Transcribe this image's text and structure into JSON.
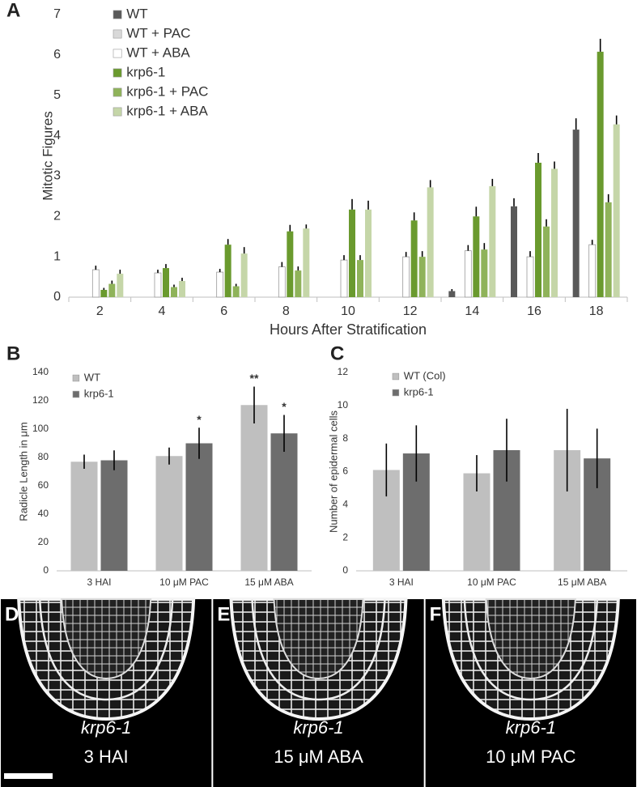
{
  "chart_data": [
    {
      "type": "bar",
      "panel_label": "A",
      "y_label": "Mitotic Figures",
      "x_label": "Hours After Stratification",
      "categories": [
        "2",
        "4",
        "6",
        "8",
        "10",
        "12",
        "14",
        "16",
        "18"
      ],
      "ylim": [
        0,
        7
      ],
      "yticks": [
        0,
        1,
        2,
        3,
        4,
        5,
        6,
        7
      ],
      "error_style": "upper",
      "series": [
        {
          "name": "WT",
          "color": "#595959",
          "values": [
            null,
            null,
            null,
            null,
            null,
            null,
            0.15,
            2.25,
            4.15
          ],
          "errors": [
            null,
            null,
            null,
            null,
            null,
            null,
            0.05,
            0.2,
            0.28
          ]
        },
        {
          "name": "WT + PAC",
          "color": "#d9d9d9",
          "values": [
            null,
            null,
            null,
            null,
            null,
            null,
            null,
            null,
            null
          ],
          "errors": [
            null,
            null,
            null,
            null,
            null,
            null,
            null,
            null,
            null
          ]
        },
        {
          "name": "WT + ABA",
          "color": "#ffffff",
          "values": [
            0.68,
            0.6,
            0.62,
            0.75,
            0.92,
            1.0,
            1.15,
            1.0,
            1.3
          ],
          "errors": [
            0.1,
            0.08,
            0.08,
            0.12,
            0.12,
            0.12,
            0.14,
            0.14,
            0.12
          ]
        },
        {
          "name": "krp6-1",
          "color": "#6a9a2e",
          "values": [
            0.18,
            0.72,
            1.3,
            1.63,
            2.17,
            1.9,
            2.0,
            3.33,
            6.08
          ],
          "errors": [
            0.05,
            0.1,
            0.14,
            0.16,
            0.26,
            0.2,
            0.24,
            0.24,
            0.32
          ]
        },
        {
          "name": "krp6-1 + PAC",
          "color": "#8fb35a",
          "values": [
            0.33,
            0.25,
            0.27,
            0.66,
            0.92,
            1.0,
            1.18,
            1.75,
            2.35
          ],
          "errors": [
            0.08,
            0.06,
            0.06,
            0.1,
            0.12,
            0.14,
            0.16,
            0.18,
            0.2
          ]
        },
        {
          "name": "krp6-1 + ABA",
          "color": "#c5d6a8",
          "values": [
            0.58,
            0.4,
            1.08,
            1.7,
            2.17,
            2.72,
            2.75,
            3.18,
            4.28
          ],
          "errors": [
            0.1,
            0.08,
            0.16,
            0.1,
            0.22,
            0.18,
            0.18,
            0.18,
            0.22
          ]
        }
      ]
    },
    {
      "type": "bar",
      "panel_label": "B",
      "y_label": "Radicle Length in μm",
      "categories": [
        "3 HAI",
        "10 μM PAC",
        "15 μM ABA"
      ],
      "ylim": [
        0,
        140
      ],
      "yticks": [
        0,
        20,
        40,
        60,
        80,
        100,
        120,
        140
      ],
      "error_style": "both",
      "series": [
        {
          "name": "WT",
          "color": "#bfbfbf",
          "values": [
            77,
            81,
            117
          ],
          "errors": [
            5,
            6,
            13
          ],
          "significance": [
            null,
            null,
            "**"
          ]
        },
        {
          "name": "krp6-1",
          "color": "#6d6d6d",
          "values": [
            78,
            90,
            97
          ],
          "errors": [
            7,
            11,
            13
          ],
          "significance": [
            null,
            "*",
            "*"
          ]
        }
      ]
    },
    {
      "type": "bar",
      "panel_label": "C",
      "y_label": "Number of epidermal cells",
      "categories": [
        "3 HAI",
        "10 μM PAC",
        "15 μM ABA"
      ],
      "ylim": [
        0,
        12
      ],
      "yticks": [
        0,
        2,
        4,
        6,
        8,
        10,
        12
      ],
      "error_style": "both",
      "series": [
        {
          "name": "WT (Col)",
          "color": "#bfbfbf",
          "values": [
            6.1,
            5.9,
            7.3
          ],
          "errors": [
            1.6,
            1.1,
            2.5
          ]
        },
        {
          "name": "krp6-1",
          "color": "#6d6d6d",
          "values": [
            7.1,
            7.3,
            6.8
          ],
          "errors": [
            1.7,
            1.9,
            1.8
          ]
        }
      ]
    }
  ],
  "images": [
    {
      "panel_label": "D",
      "caption": [
        "krp6-1",
        "3 HAI"
      ]
    },
    {
      "panel_label": "E",
      "caption": [
        "krp6-1",
        "15 μM ABA"
      ]
    },
    {
      "panel_label": "F",
      "caption": [
        "krp6-1",
        "10 μM PAC"
      ]
    }
  ]
}
